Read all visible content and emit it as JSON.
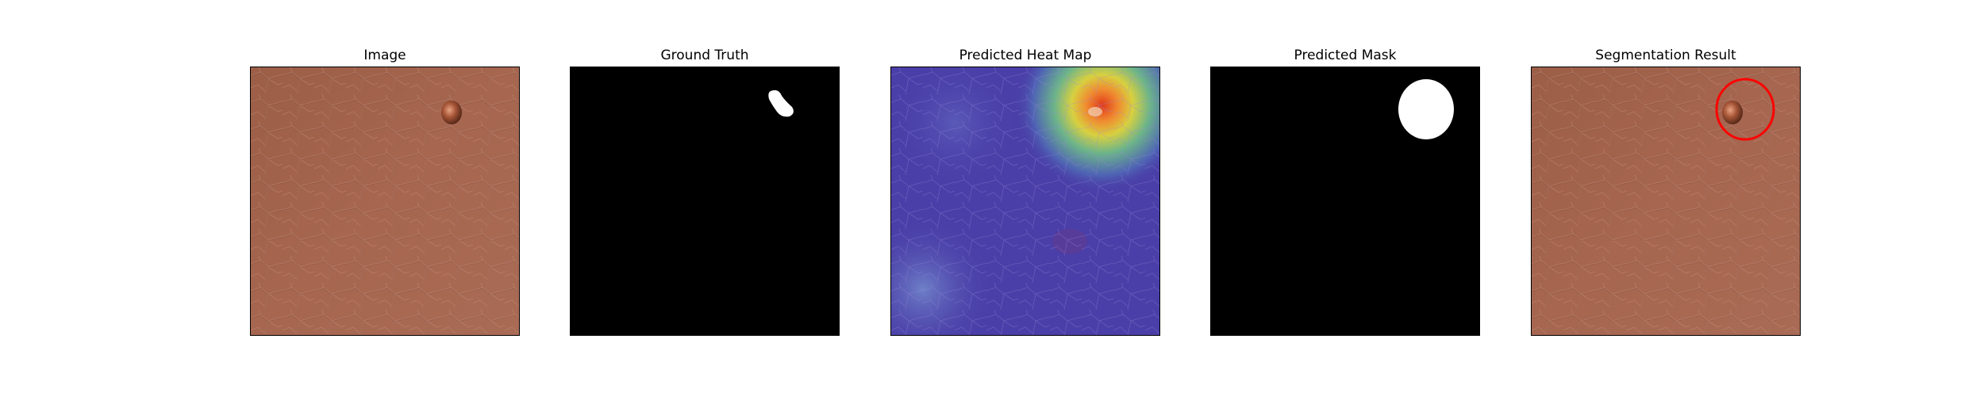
{
  "panels": [
    {
      "title": "Image",
      "kind": "image"
    },
    {
      "title": "Ground Truth",
      "kind": "ground-truth"
    },
    {
      "title": "Predicted Heat Map",
      "kind": "heat-map"
    },
    {
      "title": "Predicted Mask",
      "kind": "mask"
    },
    {
      "title": "Segmentation Result",
      "kind": "segmentation"
    }
  ],
  "colors": {
    "skin": "#a8674f",
    "mask_background": "#000000",
    "mask_foreground": "#ffffff",
    "heatmap_base": "#4a3fa8",
    "heatmap_hot": "#e03a1c",
    "outline": "#ff0000"
  }
}
